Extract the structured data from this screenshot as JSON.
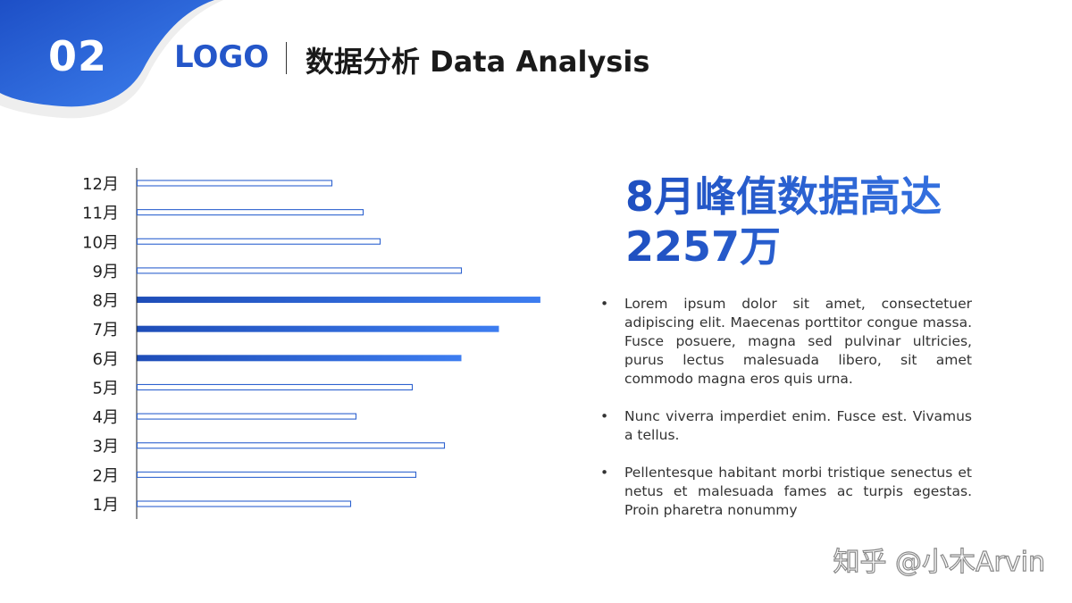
{
  "header": {
    "slide_number": "02",
    "logo": "LOGO",
    "title": "数据分析 Data Analysis"
  },
  "colors": {
    "accent": "#2456c9",
    "accent_light": "#3d7df0",
    "text": "#333333"
  },
  "chart_data": {
    "type": "bar",
    "orientation": "horizontal",
    "categories": [
      "1月",
      "2月",
      "3月",
      "4月",
      "5月",
      "6月",
      "7月",
      "8月",
      "9月",
      "10月",
      "11月",
      "12月"
    ],
    "values": [
      1195,
      1560,
      1720,
      1225,
      1540,
      1815,
      2025,
      2257,
      1815,
      1360,
      1265,
      1090
    ],
    "highlighted": [
      "6月",
      "7月",
      "8月"
    ],
    "xlim": [
      0,
      2600
    ],
    "grid": false,
    "title": "",
    "xlabel": "",
    "ylabel": ""
  },
  "headline": {
    "line1": "8月峰值数据高达",
    "line2": "2257万"
  },
  "bullets": [
    "Lorem ipsum dolor sit amet, consectetuer adipiscing elit. Maecenas porttitor congue massa. Fusce posuere, magna sed pulvinar ultricies, purus lectus malesuada libero, sit amet commodo magna eros quis urna.",
    "Nunc viverra imperdiet enim. Fusce est. Vivamus a tellus.",
    "Pellentesque habitant morbi tristique senectus et netus et malesuada fames ac turpis egestas. Proin pharetra nonummy"
  ],
  "watermark": "知乎 @小木Arvin"
}
